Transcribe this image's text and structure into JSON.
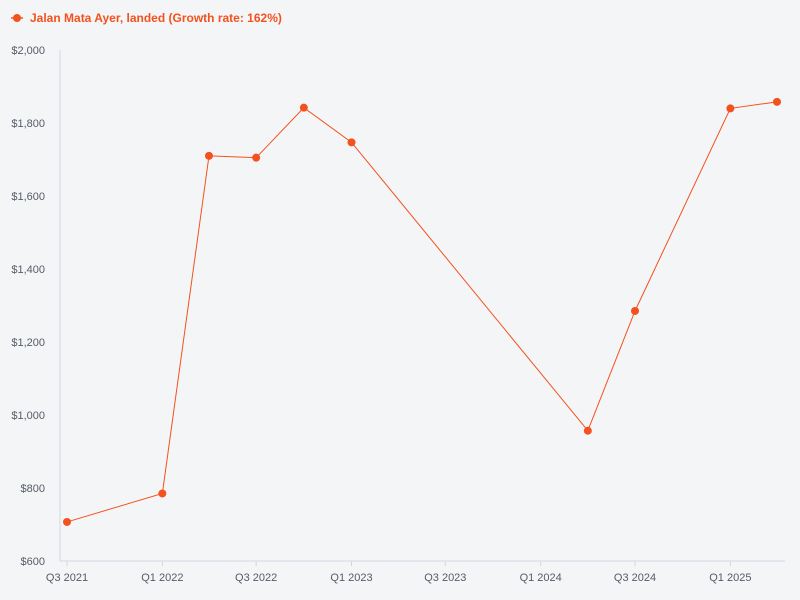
{
  "chart_data": {
    "type": "line",
    "title": "",
    "xlabel": "",
    "ylabel": "",
    "legend": {
      "placement": "top-left"
    },
    "grid": false,
    "series": [
      {
        "name": "Jalan Mata Ayer, landed (Growth rate: 162%)",
        "color": "#f4511e",
        "points": [
          {
            "x": "2021-07-01",
            "y": 707
          },
          {
            "x": "2022-01-01",
            "y": 785
          },
          {
            "x": "2022-04-01",
            "y": 1710
          },
          {
            "x": "2022-07-01",
            "y": 1705
          },
          {
            "x": "2022-10-01",
            "y": 1842
          },
          {
            "x": "2023-01-01",
            "y": 1747
          },
          {
            "x": "2024-04-01",
            "y": 957
          },
          {
            "x": "2024-07-01",
            "y": 1285
          },
          {
            "x": "2025-01-01",
            "y": 1840
          },
          {
            "x": "2025-04-01",
            "y": 1858
          }
        ]
      }
    ],
    "x_range": [
      "2021-07-01",
      "2025-04-01"
    ],
    "x_ticks": [
      {
        "x": "2021-07-01",
        "label": "Q3 2021"
      },
      {
        "x": "2022-01-01",
        "label": "Q1 2022"
      },
      {
        "x": "2022-07-01",
        "label": "Q3 2022"
      },
      {
        "x": "2023-01-01",
        "label": "Q1 2023"
      },
      {
        "x": "2023-07-01",
        "label": "Q3 2023"
      },
      {
        "x": "2024-01-01",
        "label": "Q1 2024"
      },
      {
        "x": "2024-07-01",
        "label": "Q3 2024"
      },
      {
        "x": "2025-01-01",
        "label": "Q1 2025"
      }
    ],
    "ylim": [
      600,
      2000
    ],
    "y_ticks": [
      {
        "y": 600,
        "label": "$600"
      },
      {
        "y": 800,
        "label": "$800"
      },
      {
        "y": 1000,
        "label": "$1,000"
      },
      {
        "y": 1200,
        "label": "$1,200"
      },
      {
        "y": 1400,
        "label": "$1,400"
      },
      {
        "y": 1600,
        "label": "$1,600"
      },
      {
        "y": 1800,
        "label": "$1,800"
      },
      {
        "y": 2000,
        "label": "$2,000"
      }
    ]
  }
}
